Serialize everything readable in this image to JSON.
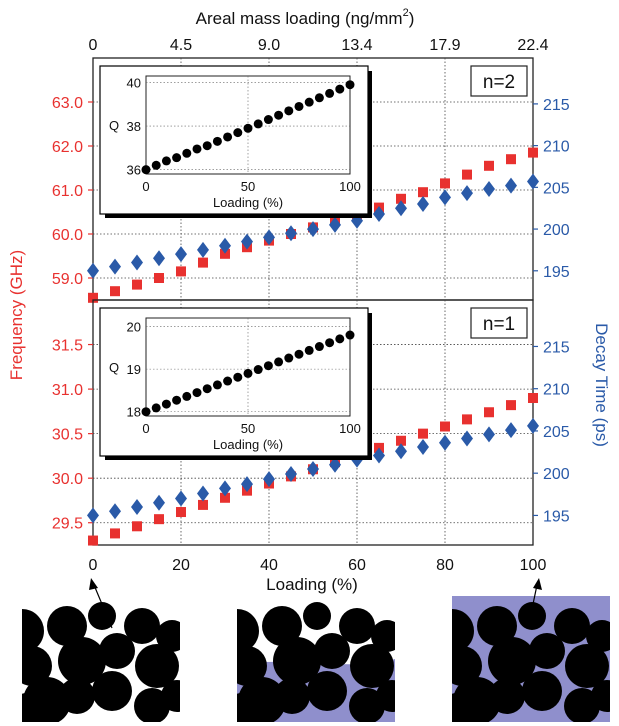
{
  "top_axis": {
    "label_main": "Areal mass loading (ng/mm",
    "label_sup": "2",
    "label_close": ")",
    "ticks": [
      "0",
      "4.5",
      "9.0",
      "13.4",
      "17.9",
      "22.4"
    ]
  },
  "left_axis_label": "Frequency (GHz)",
  "right_axis_label": "Decay Time (ps)",
  "bottom_axis_label": "Loading (%)",
  "colors": {
    "frequency": "#e8312f",
    "decay": "#2a5aa8",
    "axis_left": "#e8312f",
    "axis_right": "#2a5aa8",
    "inset_points": "#000000",
    "fill": "#8f8fcc"
  },
  "chart_data": [
    {
      "type": "scatter",
      "panel_label": "n=2",
      "x": [
        0,
        5,
        10,
        15,
        20,
        25,
        30,
        35,
        40,
        45,
        50,
        55,
        60,
        65,
        70,
        75,
        80,
        85,
        90,
        95,
        100
      ],
      "xlim": [
        0,
        100
      ],
      "xticks": [
        0,
        20,
        40,
        60,
        80,
        100
      ],
      "left_axis": {
        "ylim": [
          58.5,
          64.0
        ],
        "ticks": [
          "59.0",
          "60.0",
          "61.0",
          "62.0",
          "63.0"
        ]
      },
      "right_axis": {
        "ylim": [
          191.5,
          220.5
        ],
        "ticks": [
          "195",
          "200",
          "205",
          "210",
          "215"
        ]
      },
      "series": [
        {
          "axis": "left",
          "marker": "square",
          "color": "#e8312f",
          "values": [
            58.55,
            58.7,
            58.85,
            59.0,
            59.15,
            59.35,
            59.55,
            59.7,
            59.85,
            60.0,
            60.15,
            60.3,
            60.45,
            60.6,
            60.8,
            60.95,
            61.15,
            61.35,
            61.55,
            61.7,
            61.85
          ]
        },
        {
          "axis": "right",
          "marker": "diamond",
          "color": "#2a5aa8",
          "values": [
            195.0,
            195.5,
            196.0,
            196.5,
            197.0,
            197.5,
            198.0,
            198.5,
            199.0,
            199.5,
            200.0,
            200.5,
            201.0,
            201.8,
            202.5,
            203.0,
            203.8,
            204.3,
            204.8,
            205.2,
            205.7
          ]
        }
      ],
      "inset": {
        "type": "scatter",
        "xlabel": "Loading (%)",
        "ylabel": "Q",
        "xlim": [
          0,
          100
        ],
        "xticks": [
          "0",
          "50",
          "100"
        ],
        "ylim": [
          35.8,
          40.3
        ],
        "yticks": [
          "36",
          "38",
          "40"
        ],
        "x": [
          0,
          5,
          10,
          15,
          20,
          25,
          30,
          35,
          40,
          45,
          50,
          55,
          60,
          65,
          70,
          75,
          80,
          85,
          90,
          95,
          100
        ],
        "values": [
          36.0,
          36.2,
          36.4,
          36.55,
          36.75,
          36.95,
          37.1,
          37.3,
          37.5,
          37.7,
          37.9,
          38.1,
          38.3,
          38.5,
          38.7,
          38.9,
          39.1,
          39.3,
          39.5,
          39.7,
          39.9
        ]
      }
    },
    {
      "type": "scatter",
      "panel_label": "n=1",
      "x": [
        0,
        5,
        10,
        15,
        20,
        25,
        30,
        35,
        40,
        45,
        50,
        55,
        60,
        65,
        70,
        75,
        80,
        85,
        90,
        95,
        100
      ],
      "xlim": [
        0,
        100
      ],
      "xticks": [
        0,
        20,
        40,
        60,
        80,
        100
      ],
      "left_axis": {
        "ylim": [
          29.25,
          32.0
        ],
        "ticks": [
          "29.5",
          "30.0",
          "30.5",
          "31.0",
          "31.5"
        ]
      },
      "right_axis": {
        "ylim": [
          191.5,
          220.5
        ],
        "ticks": [
          "195",
          "200",
          "205",
          "210",
          "215"
        ]
      },
      "series": [
        {
          "axis": "left",
          "marker": "square",
          "color": "#e8312f",
          "values": [
            29.3,
            29.38,
            29.46,
            29.54,
            29.62,
            29.7,
            29.78,
            29.86,
            29.94,
            30.02,
            30.1,
            30.18,
            30.26,
            30.34,
            30.42,
            30.5,
            30.58,
            30.66,
            30.74,
            30.82,
            30.9
          ]
        },
        {
          "axis": "right",
          "marker": "diamond",
          "color": "#2a5aa8",
          "values": [
            195.0,
            195.5,
            196.0,
            196.5,
            197.0,
            197.6,
            198.2,
            198.7,
            199.3,
            199.9,
            200.5,
            201.0,
            201.6,
            202.1,
            202.6,
            203.1,
            203.6,
            204.1,
            204.6,
            205.1,
            205.6
          ]
        }
      ],
      "inset": {
        "type": "scatter",
        "xlabel": "Loading (%)",
        "ylabel": "Q",
        "xlim": [
          0,
          100
        ],
        "xticks": [
          "0",
          "50",
          "100"
        ],
        "ylim": [
          17.9,
          20.2
        ],
        "yticks": [
          "18",
          "19",
          "20"
        ],
        "x": [
          0,
          5,
          10,
          15,
          20,
          25,
          30,
          35,
          40,
          45,
          50,
          55,
          60,
          65,
          70,
          75,
          80,
          85,
          90,
          95,
          100
        ],
        "values": [
          18.0,
          18.09,
          18.18,
          18.27,
          18.36,
          18.45,
          18.54,
          18.63,
          18.72,
          18.81,
          18.9,
          18.99,
          19.08,
          19.17,
          19.26,
          19.35,
          19.44,
          19.53,
          19.62,
          19.71,
          19.8
        ]
      }
    }
  ],
  "bottom_panels": [
    {
      "name": "pore-image-empty",
      "fill_level": 0
    },
    {
      "name": "pore-image-partial",
      "fill_level": 0.5
    },
    {
      "name": "pore-image-full",
      "fill_level": 1
    }
  ]
}
